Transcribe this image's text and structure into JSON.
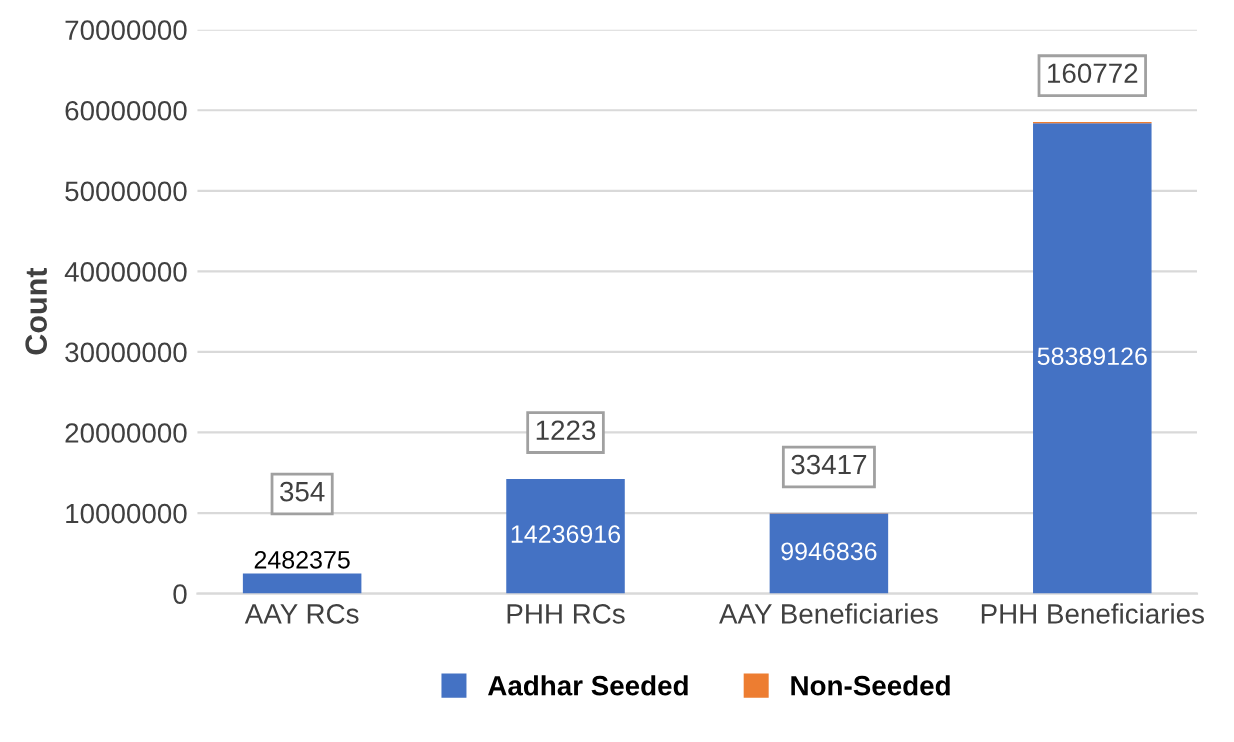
{
  "chart_data": {
    "type": "bar",
    "stacked": true,
    "ylabel": "Count",
    "categories": [
      "AAY RCs",
      "PHH RCs",
      "AAY Beneficiaries",
      "PHH Beneficiaries"
    ],
    "series": [
      {
        "name": "Aadhar Seeded",
        "color": "#4472c4",
        "values": [
          2482375,
          14236916,
          9946836,
          58389126
        ]
      },
      {
        "name": "Non-Seeded",
        "color": "#ed7d31",
        "values": [
          354,
          1223,
          33417,
          160772
        ]
      }
    ],
    "ylim": [
      0,
      70000000
    ],
    "yticks": [
      0,
      10000000,
      20000000,
      30000000,
      40000000,
      50000000,
      60000000,
      70000000
    ],
    "grid": "y",
    "legend": "bottom",
    "data_labels": true
  }
}
